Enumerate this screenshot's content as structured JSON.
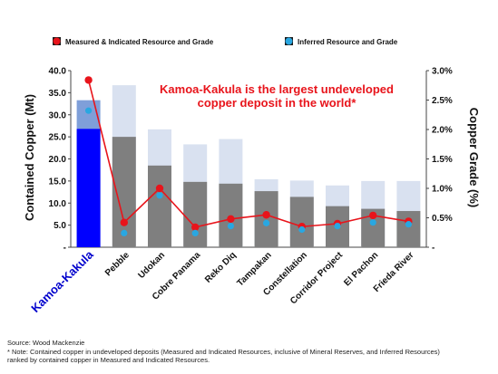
{
  "legend": {
    "measured": "Measured & Indicated Resource and Grade",
    "inferred": "Inferred Resource and Grade"
  },
  "annotation": {
    "line1": "Kamoa-Kakula is the largest undeveloped",
    "line2": "copper deposit in the world*"
  },
  "footnotes": {
    "source": "Source: Wood Mackenzie",
    "note_line1": "* Note: Contained copper in undeveloped deposits (Measured and Indicated Resources, inclusive of Mineral Reserves, and Inferred Resources)",
    "note_line2": "ranked by contained copper in Measured and Indicated Resources."
  },
  "colors": {
    "measured_bar": "#7f7f7f",
    "inferred_bar": "#d9e1f0",
    "highlight_measured": "#0000ff",
    "highlight_inferred": "#7f9fd9",
    "grade_line": "#e8141b",
    "inferred_marker": "#29a7e1",
    "annotation_text": "#e8141b",
    "highlight_label": "#0000cc"
  },
  "chart_data": {
    "type": "bar",
    "categories": [
      "Kamoa-Kakula",
      "Pebble",
      "Udokan",
      "Cobre Panama",
      "Reko Diq",
      "Tampakan",
      "Constellation",
      "Corridor Project",
      "El Pachon",
      "Frieda River"
    ],
    "series": [
      {
        "name": "Measured & Indicated Resource and Grade",
        "values": [
          26.8,
          25.0,
          18.5,
          14.8,
          14.4,
          12.7,
          11.4,
          9.3,
          8.7,
          8.2
        ]
      },
      {
        "name": "Inferred Resource and Grade",
        "values": [
          33.3,
          36.7,
          26.7,
          23.3,
          24.5,
          15.4,
          15.1,
          14.0,
          15.0,
          15.0
        ]
      }
    ],
    "grades": [
      {
        "name": "Measured & Indicated Resource and Grade",
        "values": [
          2.84,
          0.42,
          1.0,
          0.34,
          0.48,
          0.55,
          0.35,
          0.4,
          0.54,
          0.44
        ]
      },
      {
        "name": "Inferred Resource and Grade",
        "values": [
          2.32,
          0.24,
          0.88,
          0.24,
          0.36,
          0.41,
          0.3,
          0.36,
          0.42,
          0.39
        ]
      }
    ],
    "highlight_index": 0,
    "ylabel": "Contained Copper (Mt)",
    "y2label": "Copper Grade (%)",
    "ylim": [
      0,
      40
    ],
    "y2lim": [
      0,
      3.0
    ],
    "yticks": [
      "-",
      "5.0",
      "10.0",
      "15.0",
      "20.0",
      "25.0",
      "30.0",
      "35.0",
      "40.0"
    ],
    "y2ticks": [
      "-",
      "0.5%",
      "1.0%",
      "1.5%",
      "2.0%",
      "2.5%",
      "3.0%"
    ]
  }
}
